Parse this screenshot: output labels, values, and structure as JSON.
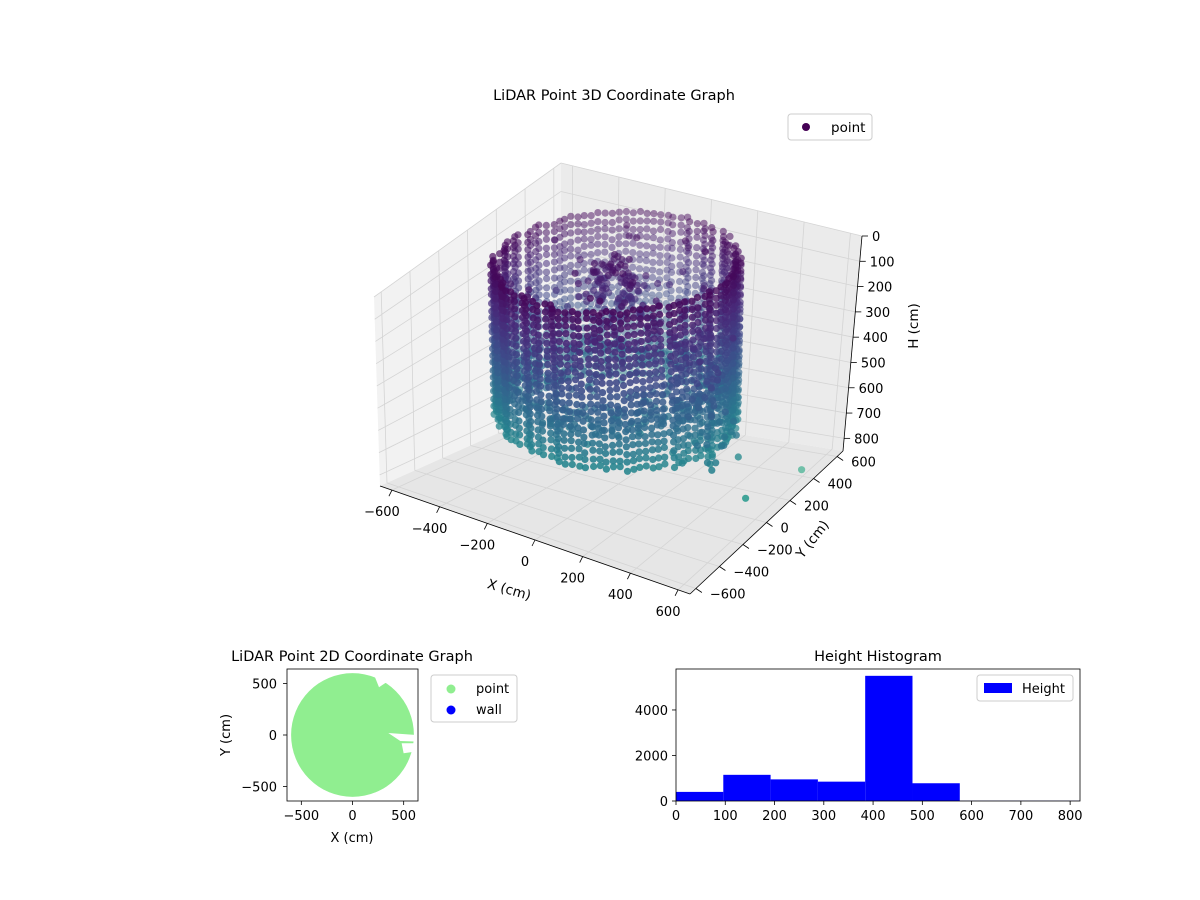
{
  "colors": {
    "viridis_dark": "#440154",
    "viridis_mid": "#3b528b",
    "viridis_teal": "#21918c",
    "viridis_green": "#5ec962",
    "pane_light": "#f2f2f2",
    "pane_mid": "#ebebeb",
    "pane_dark": "#e6e6e6",
    "point_2d": "#90ee90",
    "wall_2d": "#0000ff",
    "histogram": "#0000ff"
  },
  "chart_data": [
    {
      "type": "scatter",
      "projection": "3d",
      "title": "LiDAR Point 3D Coordinate Graph",
      "xlabel": "X (cm)",
      "ylabel": "Y (cm)",
      "zlabel": "H (cm)",
      "xticks": [
        "−600",
        "−400",
        "−200",
        "0",
        "200",
        "400",
        "600"
      ],
      "yticks": [
        "−600",
        "−400",
        "−200",
        "0",
        "200",
        "400",
        "600"
      ],
      "zticks": [
        "0",
        "100",
        "200",
        "300",
        "400",
        "500",
        "600",
        "700",
        "800"
      ],
      "xlim": [
        -650,
        650
      ],
      "ylim": [
        -650,
        650
      ],
      "zlim": [
        0,
        850
      ],
      "z_axis": "inverted",
      "colormap": "viridis",
      "legend": {
        "entries": [
          "point"
        ],
        "location": "upper right"
      },
      "grid": true,
      "structure": {
        "cylinder_radius_cm": 450,
        "wall_height_range_cm": [
          0,
          600
        ],
        "floor_height_cm": 450,
        "outliers": [
          [
            640,
            -150,
            700
          ],
          [
            620,
            350,
            800
          ]
        ]
      }
    },
    {
      "type": "scatter",
      "title": "LiDAR Point 2D Coordinate Graph",
      "xlabel": "X (cm)",
      "ylabel": "Y (cm)",
      "xticks": [
        "−500",
        "0",
        "500"
      ],
      "yticks": [
        "−500",
        "0",
        "500"
      ],
      "xlim": [
        -640,
        640
      ],
      "ylim": [
        -640,
        640
      ],
      "legend": {
        "entries": [
          "point",
          "wall"
        ],
        "location": "outside upper right"
      },
      "series": [
        {
          "name": "point",
          "shape": "disk",
          "center": [
            0,
            0
          ],
          "radius": 600
        },
        {
          "name": "wall"
        }
      ]
    },
    {
      "type": "bar",
      "subtype": "histogram",
      "title": "Height Histogram",
      "xticks": [
        "0",
        "100",
        "200",
        "300",
        "400",
        "500",
        "600",
        "700",
        "800"
      ],
      "yticks": [
        "0",
        "2000",
        "4000"
      ],
      "xlim": [
        0,
        820
      ],
      "ylim": [
        0,
        5800
      ],
      "legend": {
        "entries": [
          "Height"
        ],
        "location": "upper right"
      },
      "bin_edges": [
        0,
        96,
        192,
        288,
        384,
        480,
        576,
        672,
        768,
        864
      ],
      "values": [
        400,
        1150,
        950,
        850,
        5500,
        780,
        10,
        10,
        10
      ],
      "series": [
        {
          "name": "Height"
        }
      ]
    }
  ]
}
